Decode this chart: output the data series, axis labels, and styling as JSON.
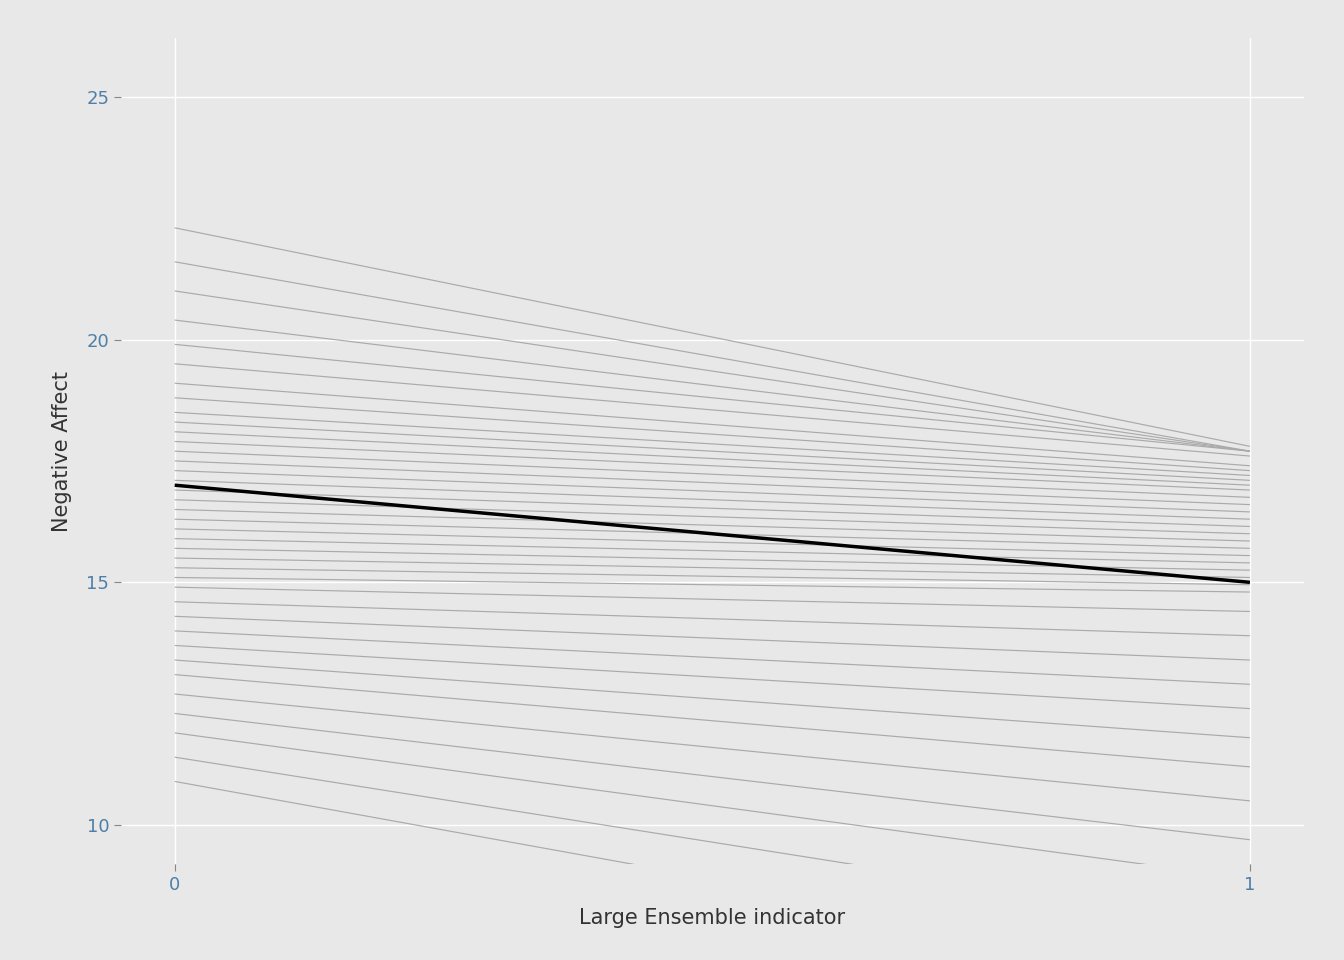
{
  "xlabel": "Large Ensemble indicator",
  "ylabel": "Negative Affect",
  "xlim": [
    -0.05,
    1.05
  ],
  "ylim": [
    9.2,
    26.2
  ],
  "yticks": [
    10,
    15,
    20,
    25
  ],
  "xticks": [
    0,
    1
  ],
  "bg_color": "#E8E8E8",
  "grid_color": "#FFFFFF",
  "gray_color": "#AAAAAA",
  "black_color": "#000000",
  "overall_intercept": 17.0,
  "overall_slope": -2.0,
  "subjects": [
    {
      "intercept": 22.3,
      "slope": -4.5
    },
    {
      "intercept": 21.6,
      "slope": -3.9
    },
    {
      "intercept": 21.0,
      "slope": -3.3
    },
    {
      "intercept": 20.4,
      "slope": -2.7
    },
    {
      "intercept": 19.9,
      "slope": -2.2
    },
    {
      "intercept": 19.5,
      "slope": -1.9
    },
    {
      "intercept": 19.1,
      "slope": -1.7
    },
    {
      "intercept": 18.8,
      "slope": -1.5
    },
    {
      "intercept": 18.5,
      "slope": -1.3
    },
    {
      "intercept": 18.3,
      "slope": -1.2
    },
    {
      "intercept": 18.1,
      "slope": -1.1
    },
    {
      "intercept": 17.9,
      "slope": -1.0
    },
    {
      "intercept": 17.7,
      "slope": -0.95
    },
    {
      "intercept": 17.5,
      "slope": -0.9
    },
    {
      "intercept": 17.3,
      "slope": -0.85
    },
    {
      "intercept": 17.1,
      "slope": -0.8
    },
    {
      "intercept": 16.9,
      "slope": -0.75
    },
    {
      "intercept": 16.7,
      "slope": -0.7
    },
    {
      "intercept": 16.5,
      "slope": -0.65
    },
    {
      "intercept": 16.3,
      "slope": -0.6
    },
    {
      "intercept": 16.1,
      "slope": -0.55
    },
    {
      "intercept": 15.9,
      "slope": -0.5
    },
    {
      "intercept": 15.7,
      "slope": -0.45
    },
    {
      "intercept": 15.5,
      "slope": -0.4
    },
    {
      "intercept": 15.3,
      "slope": -0.35
    },
    {
      "intercept": 15.1,
      "slope": -0.3
    },
    {
      "intercept": 14.9,
      "slope": -0.5
    },
    {
      "intercept": 14.6,
      "slope": -0.7
    },
    {
      "intercept": 14.3,
      "slope": -0.9
    },
    {
      "intercept": 14.0,
      "slope": -1.1
    },
    {
      "intercept": 13.7,
      "slope": -1.3
    },
    {
      "intercept": 13.4,
      "slope": -1.6
    },
    {
      "intercept": 13.1,
      "slope": -1.9
    },
    {
      "intercept": 12.7,
      "slope": -2.2
    },
    {
      "intercept": 12.3,
      "slope": -2.6
    },
    {
      "intercept": 11.9,
      "slope": -3.0
    },
    {
      "intercept": 11.4,
      "slope": -3.5
    },
    {
      "intercept": 10.9,
      "slope": -4.0
    }
  ],
  "label_fontsize": 15,
  "tick_fontsize": 13,
  "axis_text_color": "#4d7fa8",
  "axis_label_color": "#333333",
  "gray_lw": 0.85,
  "black_lw": 2.5
}
